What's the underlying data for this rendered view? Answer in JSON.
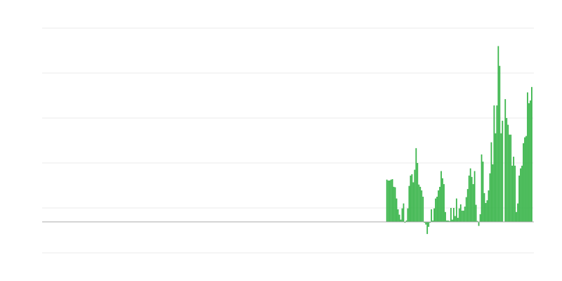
{
  "chart_data": {
    "type": "bar",
    "title": "",
    "xlabel": "",
    "ylabel": "",
    "grid": true,
    "legend": "none",
    "xlim": [
      0,
      353
    ],
    "first_x": 247,
    "ylim": [
      -69,
      431
    ],
    "gridlines": [
      431,
      331,
      231,
      131,
      31,
      -69
    ],
    "baseline": 0,
    "colors": {
      "bar": "#39b54a",
      "grid": "#ebebeb",
      "baseline": "#aaaaaa"
    },
    "values": [
      94,
      92,
      92,
      94,
      95,
      78,
      77,
      52,
      28,
      16,
      5,
      30,
      41,
      -2,
      3,
      30,
      80,
      103,
      106,
      88,
      116,
      164,
      131,
      83,
      78,
      70,
      56,
      -2,
      -6,
      -27,
      -11,
      -2,
      28,
      3,
      30,
      52,
      56,
      70,
      78,
      113,
      97,
      84,
      22,
      3,
      3,
      2,
      31,
      5,
      31,
      13,
      52,
      9,
      30,
      39,
      25,
      25,
      34,
      55,
      73,
      103,
      119,
      100,
      84,
      113,
      38,
      2,
      -9,
      17,
      150,
      134,
      64,
      42,
      48,
      70,
      108,
      177,
      128,
      259,
      197,
      259,
      391,
      347,
      197,
      225,
      0,
      273,
      231,
      216,
      194,
      194,
      125,
      145,
      125,
      22,
      41,
      103,
      119,
      125,
      175,
      188,
      191,
      288,
      264,
      270,
      300
    ]
  }
}
